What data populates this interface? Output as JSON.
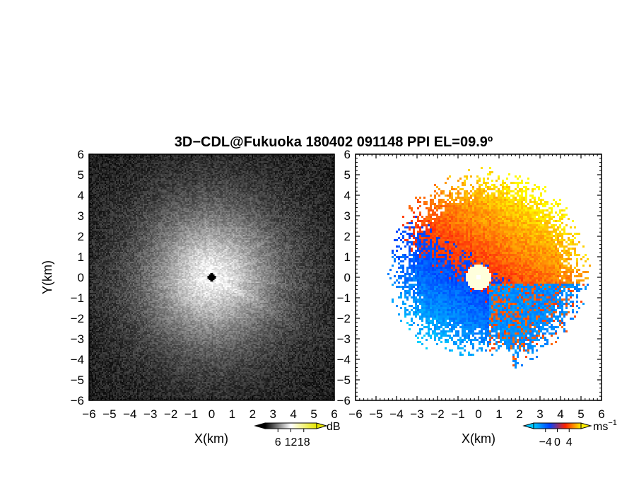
{
  "figure": {
    "title": "3D−CDL@Fukuoka 180402 091148 PPI EL=09.9º"
  },
  "chart_data": [
    {
      "type": "heatmap",
      "panel": "left",
      "description_of_field": "radar reflectivity-like intensity field, bright centre with radial streaks, dark noisy background",
      "xlabel": "X(km)",
      "ylabel": "Y(km)",
      "xlim": [
        -6,
        6
      ],
      "ylim": [
        -6,
        6
      ],
      "xticks": [
        "−6",
        "−5",
        "−4",
        "−3",
        "−2",
        "−1",
        "0",
        "1",
        "2",
        "3",
        "4",
        "5",
        "6"
      ],
      "yticks": [
        "−6",
        "−5",
        "−4",
        "−3",
        "−2",
        "−1",
        "0",
        "1",
        "2",
        "3",
        "4",
        "5",
        "6"
      ],
      "colorbar": {
        "unit": "dB",
        "ticks": [
          "6",
          "12",
          "18"
        ],
        "tick_values": [
          6,
          12,
          18
        ],
        "range": [
          0,
          24
        ],
        "colors": [
          "#000000",
          "#ffffff",
          "#e6e600"
        ]
      }
    },
    {
      "type": "heatmap",
      "panel": "right",
      "description_of_field": "Doppler velocity: warm (positive) towards north-east, cool (negative) towards south-west, white near origin",
      "xlabel": "X(km)",
      "ylabel": "",
      "xlim": [
        -6,
        6
      ],
      "ylim": [
        -6,
        6
      ],
      "xticks": [
        "−6",
        "−5",
        "−4",
        "−3",
        "−2",
        "−1",
        "0",
        "1",
        "2",
        "3",
        "4",
        "5",
        "6"
      ],
      "yticks": [
        "−6",
        "−5",
        "−4",
        "−3",
        "−2",
        "−1",
        "0",
        "1",
        "2",
        "3",
        "4",
        "5",
        "6"
      ],
      "colorbar": {
        "unit": "ms",
        "unit_exponent": "−1",
        "ticks": [
          "−4",
          "0",
          "4"
        ],
        "tick_values": [
          -4,
          0,
          4
        ],
        "range": [
          -8,
          8
        ],
        "colors": [
          "#00c8ff",
          "#0044ff",
          "#ff2200",
          "#ffee00"
        ]
      }
    }
  ]
}
